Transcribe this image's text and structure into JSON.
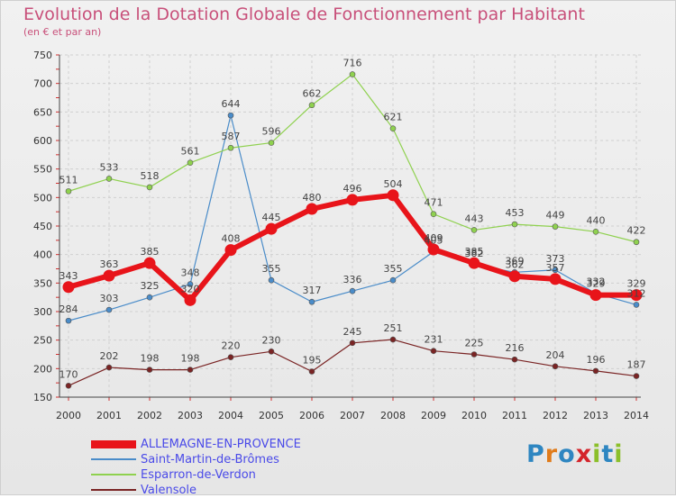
{
  "title": "Evolution de la Dotation Globale de Fonctionnement par Habitant",
  "subtitle": "(en € et par an)",
  "logo": {
    "text": "Proxiti",
    "letters": [
      {
        "ch": "P",
        "color": "#2e86c1"
      },
      {
        "ch": "r",
        "color": "#e07b1a"
      },
      {
        "ch": "o",
        "color": "#2e86c1"
      },
      {
        "ch": "x",
        "color": "#d4242b"
      },
      {
        "ch": "i",
        "color": "#8bbf2a"
      },
      {
        "ch": "t",
        "color": "#2e86c1"
      },
      {
        "ch": "i",
        "color": "#8bbf2a"
      }
    ]
  },
  "chart_data": {
    "type": "line",
    "title": "Evolution de la Dotation Globale de Fonctionnement par Habitant",
    "subtitle": "(en € et par an)",
    "x": [
      2000,
      2001,
      2002,
      2003,
      2004,
      2005,
      2006,
      2007,
      2008,
      2009,
      2010,
      2011,
      2012,
      2013,
      2014
    ],
    "ylim": [
      150,
      750
    ],
    "yticks": [
      150,
      200,
      250,
      300,
      350,
      400,
      450,
      500,
      550,
      600,
      650,
      700,
      750
    ],
    "grid": true,
    "legend_position": "bottom-left",
    "series": [
      {
        "name": "ALLEMAGNE-EN-PROVENCE",
        "color": "#e8141a",
        "values": [
          343,
          363,
          385,
          320,
          408,
          445,
          480,
          496,
          504,
          409,
          385,
          362,
          357,
          329,
          329
        ]
      },
      {
        "name": "Saint-Martin-de-Brômes",
        "color": "#4a8cc9",
        "values": [
          284,
          303,
          325,
          348,
          644,
          355,
          317,
          336,
          355,
          405,
          382,
          369,
          373,
          332,
          312
        ]
      },
      {
        "name": "Esparron-de-Verdon",
        "color": "#8fd14f",
        "values": [
          511,
          533,
          518,
          561,
          587,
          596,
          662,
          716,
          621,
          471,
          443,
          453,
          449,
          440,
          422
        ]
      },
      {
        "name": "Valensole",
        "color": "#7a2424",
        "values": [
          170,
          202,
          198,
          198,
          220,
          230,
          195,
          245,
          251,
          231,
          225,
          216,
          204,
          196,
          187
        ]
      }
    ]
  }
}
